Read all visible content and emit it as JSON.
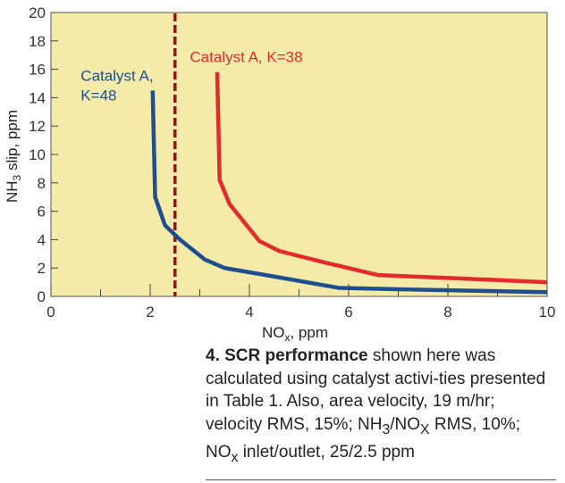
{
  "chart_data": {
    "type": "line",
    "xlabel_main": "NO",
    "xlabel_sub": "x",
    "xlabel_tail": ", ppm",
    "ylabel_main": "NH",
    "ylabel_sub": "3",
    "ylabel_tail": " slip, ppm",
    "xlim": [
      0,
      10
    ],
    "ylim": [
      0,
      20
    ],
    "x_ticks": [
      0,
      2,
      4,
      6,
      8,
      10
    ],
    "y_ticks": [
      0,
      2,
      4,
      6,
      8,
      10,
      12,
      14,
      16,
      18,
      20
    ],
    "background_color": "#f4eba8",
    "reference_line": {
      "x": 2.5,
      "style": "dashed",
      "color": "#8b1a1a"
    },
    "series": [
      {
        "name": "Catalyst A, K=48",
        "label_lines": [
          "Catalyst A,",
          "K=48"
        ],
        "color": "#1f4e8f",
        "x": [
          2.05,
          2.1,
          2.3,
          2.6,
          3.1,
          3.5,
          4.5,
          5.8,
          7.0,
          8.5,
          10.0
        ],
        "y": [
          14.5,
          7.0,
          5.0,
          4.0,
          2.6,
          2.0,
          1.4,
          0.6,
          0.5,
          0.4,
          0.3
        ]
      },
      {
        "name": "Catalyst A, K=38",
        "label_lines": [
          "Catalyst A, K=38"
        ],
        "color": "#e22b2b",
        "x": [
          3.35,
          3.4,
          3.6,
          4.2,
          4.6,
          5.5,
          6.6,
          8.0,
          10.0
        ],
        "y": [
          15.8,
          8.2,
          6.5,
          3.9,
          3.2,
          2.4,
          1.5,
          1.3,
          1.0
        ]
      }
    ]
  },
  "caption": {
    "figure_number": "4. SCR performance",
    "text_1": " shown here was calculated using catalyst activi-ties presented in Table 1. Also, area velocity, 19 m/hr; velocity RMS, 15%; NH",
    "sub_1": "3",
    "text_2": "/NO",
    "sub_2": "X",
    "text_3": " RMS, 10%; NO",
    "sub_3": "x",
    "text_4": " inlet/outlet, 25/2.5 ppm"
  }
}
